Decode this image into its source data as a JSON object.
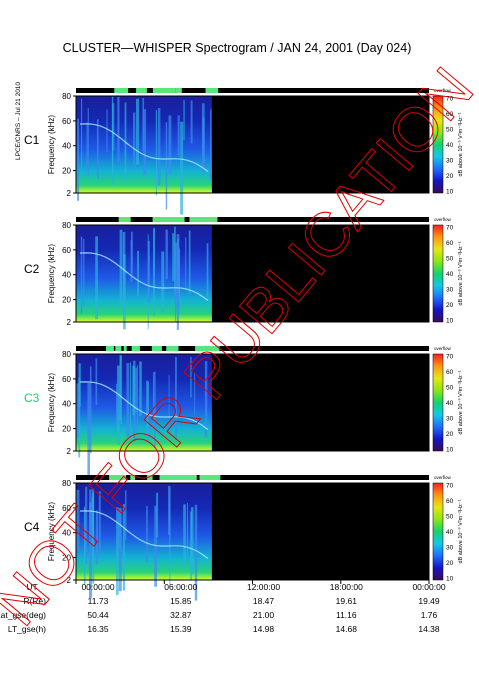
{
  "title": "CLUSTER—WHISPER Spectrogram / JAN 24, 2001 (Day 024)",
  "credit": "LPCE/CNRS – Jul 21 2010",
  "watermark": "NOT FOR PUBLICATION",
  "watermark_color": "#e00000",
  "panels": [
    {
      "label": "C1",
      "label_color": "#000000"
    },
    {
      "label": "C2",
      "label_color": "#000000"
    },
    {
      "label": "C3",
      "label_color": "#22cc66"
    },
    {
      "label": "C4",
      "label_color": "#000000"
    }
  ],
  "ylabel": "Frequency (kHz)",
  "yticks": [
    "2",
    "20",
    "40",
    "60",
    "80"
  ],
  "ylim": [
    2,
    80
  ],
  "colorbar": {
    "tag": "overflow",
    "ticks": [
      "10",
      "20",
      "30",
      "40",
      "50",
      "60",
      "70"
    ],
    "label": "dB above 10⁻⁸ V²m⁻²Hz⁻¹",
    "range": [
      10,
      70
    ],
    "colors": [
      "#3a0a55",
      "#1414c8",
      "#1e6eff",
      "#14c8e6",
      "#14d26e",
      "#8ce614",
      "#e6e614",
      "#ff9614",
      "#ff1e1e"
    ]
  },
  "data_coverage_fraction": 0.385,
  "no_data_color": "#000000",
  "axis": {
    "rows": [
      "UT",
      "R(Re)",
      "Lat_gse(deg)",
      "LT_gse(h)"
    ],
    "columns": [
      [
        "00:00:00",
        "11.73",
        "50.44",
        "16.35"
      ],
      [
        "06:00:00",
        "15.85",
        "32.87",
        "15.39"
      ],
      [
        "12:00:00",
        "18.47",
        "21.00",
        "14.98"
      ],
      [
        "18:00:00",
        "19.61",
        "11.16",
        "14.68"
      ],
      [
        "00:00:00",
        "19.49",
        "1.76",
        "14.38"
      ]
    ]
  }
}
